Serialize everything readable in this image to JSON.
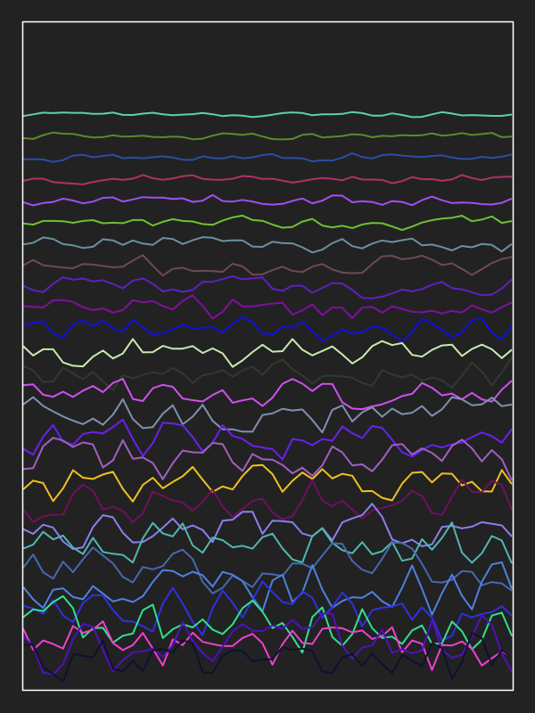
{
  "chart_data": {
    "type": "line",
    "title": "",
    "xlabel": "",
    "ylabel": "",
    "grid": false,
    "legend": "none",
    "axes_visible": false,
    "n_points": 50,
    "background_color": "#222222",
    "frame_color": "#ffffff",
    "ylim": [
      -4.0,
      0.5
    ],
    "series": [
      {
        "color": "#5ad4a6",
        "baseline": 0.0,
        "amplitude": 0.02,
        "seed": 11
      },
      {
        "color": "#5c8a2c",
        "baseline": -0.15,
        "amplitude": 0.03,
        "seed": 12
      },
      {
        "color": "#2a4ea6",
        "baseline": -0.3,
        "amplitude": 0.035,
        "seed": 13
      },
      {
        "color": "#b0306a",
        "baseline": -0.45,
        "amplitude": 0.04,
        "seed": 14
      },
      {
        "color": "#a050f0",
        "baseline": -0.6,
        "amplitude": 0.05,
        "seed": 15
      },
      {
        "color": "#70c030",
        "baseline": -0.75,
        "amplitude": 0.06,
        "seed": 16
      },
      {
        "color": "#6a90a0",
        "baseline": -0.9,
        "amplitude": 0.07,
        "seed": 17
      },
      {
        "color": "#704858",
        "baseline": -1.05,
        "amplitude": 0.08,
        "seed": 18
      },
      {
        "color": "#6020c0",
        "baseline": -1.2,
        "amplitude": 0.09,
        "seed": 19
      },
      {
        "color": "#8010a0",
        "baseline": -1.35,
        "amplitude": 0.1,
        "seed": 20
      },
      {
        "color": "#1010e0",
        "baseline": -1.5,
        "amplitude": 0.11,
        "seed": 21
      },
      {
        "color": "#c8eab0",
        "baseline": -1.65,
        "amplitude": 0.12,
        "seed": 22
      },
      {
        "color": "#303a30",
        "baseline": -1.8,
        "amplitude": 0.13,
        "seed": 23
      },
      {
        "color": "#d050f0",
        "baseline": -1.95,
        "amplitude": 0.14,
        "seed": 24
      },
      {
        "color": "#8090b0",
        "baseline": -2.1,
        "amplitude": 0.15,
        "seed": 25
      },
      {
        "color": "#6a20f0",
        "baseline": -2.25,
        "amplitude": 0.16,
        "seed": 26
      },
      {
        "color": "#a060c0",
        "baseline": -2.4,
        "amplitude": 0.17,
        "seed": 27
      },
      {
        "color": "#f0c020",
        "baseline": -2.55,
        "amplitude": 0.18,
        "seed": 28
      },
      {
        "color": "#701060",
        "baseline": -2.7,
        "amplitude": 0.19,
        "seed": 29
      },
      {
        "color": "#8a80f0",
        "baseline": -2.85,
        "amplitude": 0.2,
        "seed": 30
      },
      {
        "color": "#50b8b0",
        "baseline": -3.0,
        "amplitude": 0.21,
        "seed": 31
      },
      {
        "color": "#4868b0",
        "baseline": -3.15,
        "amplitude": 0.22,
        "seed": 32
      },
      {
        "color": "#5080e0",
        "baseline": -3.3,
        "amplitude": 0.23,
        "seed": 33
      },
      {
        "color": "#3030e0",
        "baseline": -3.45,
        "amplitude": 0.24,
        "seed": 34
      },
      {
        "color": "#30e090",
        "baseline": -3.55,
        "amplitude": 0.25,
        "seed": 35
      },
      {
        "color": "#f040d0",
        "baseline": -3.65,
        "amplitude": 0.25,
        "seed": 36
      },
      {
        "color": "#5010c0",
        "baseline": -3.72,
        "amplitude": 0.25,
        "seed": 37
      },
      {
        "color": "#101030",
        "baseline": -3.8,
        "amplitude": 0.25,
        "seed": 38
      }
    ]
  }
}
